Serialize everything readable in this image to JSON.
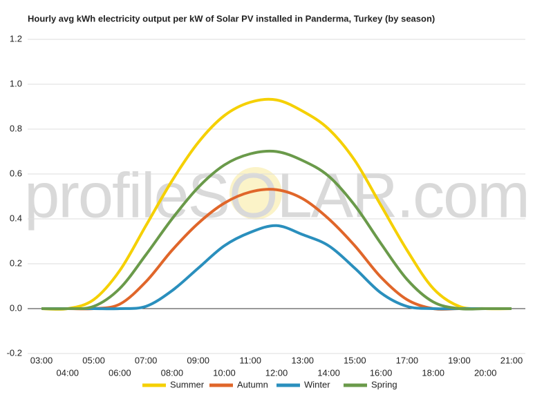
{
  "chart_data": {
    "type": "line",
    "title": "Hourly avg kWh electricity output per kW of Solar PV installed in Panderma, Turkey (by season)",
    "watermark": "profileSOLAR.com",
    "categories": [
      "03:00",
      "04:00",
      "05:00",
      "06:00",
      "07:00",
      "08:00",
      "09:00",
      "10:00",
      "11:00",
      "12:00",
      "13:00",
      "14:00",
      "15:00",
      "16:00",
      "17:00",
      "18:00",
      "19:00",
      "20:00",
      "21:00"
    ],
    "series": [
      {
        "name": "Summer",
        "color": "#f5d000",
        "values": [
          0,
          0,
          0.04,
          0.17,
          0.37,
          0.57,
          0.74,
          0.86,
          0.92,
          0.93,
          0.88,
          0.8,
          0.66,
          0.46,
          0.26,
          0.09,
          0.01,
          0,
          0
        ]
      },
      {
        "name": "Autumn",
        "color": "#e0662a",
        "values": [
          0,
          0,
          0,
          0.02,
          0.12,
          0.26,
          0.38,
          0.47,
          0.52,
          0.53,
          0.49,
          0.4,
          0.28,
          0.14,
          0.04,
          0,
          0,
          0,
          0
        ]
      },
      {
        "name": "Winter",
        "color": "#2a8fbd",
        "values": [
          0,
          0,
          0,
          0,
          0.01,
          0.08,
          0.18,
          0.28,
          0.34,
          0.37,
          0.33,
          0.28,
          0.18,
          0.07,
          0.01,
          0,
          0,
          0,
          0
        ]
      },
      {
        "name": "Spring",
        "color": "#6a9a4a",
        "values": [
          0,
          0,
          0.01,
          0.09,
          0.24,
          0.4,
          0.54,
          0.64,
          0.69,
          0.7,
          0.66,
          0.59,
          0.46,
          0.29,
          0.13,
          0.03,
          0,
          0,
          0
        ]
      }
    ],
    "ylim": [
      -0.2,
      1.2
    ],
    "yticks": [
      -0.2,
      {
        "value": 0,
        "label": "0.0"
      },
      0.2,
      0.4,
      0.6,
      0.8,
      {
        "value": 1,
        "label": "1.0"
      },
      1.2
    ],
    "grid": true,
    "legend": "bottom"
  }
}
